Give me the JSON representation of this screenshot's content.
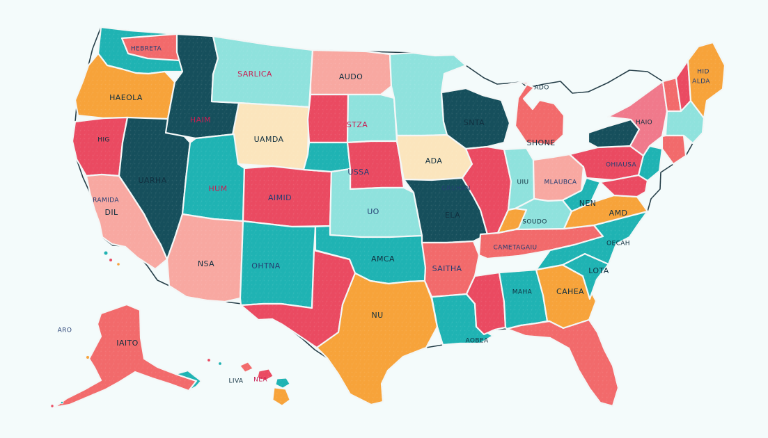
{
  "map": {
    "colors": {
      "background": "#f4fbfb",
      "coral": "#f26a6b",
      "red": "#ea4a61",
      "pink": "#f8a8a1",
      "orange": "#f7a33a",
      "teal": "#1fb3b3",
      "aqua": "#8fe2dd",
      "navy": "#164f5c",
      "cream": "#fbe5bd",
      "rose": "#f0798b"
    },
    "labels": {
      "nebraska_label": "HEBRETA",
      "montana_label": "SARLICA",
      "north_dakota_label": "AUDO",
      "minnesota_label": "SNTA",
      "ontario_label": "",
      "maine_label": "HID\nALDA",
      "oregon_label": "HAEOLA",
      "idaho_label": "HAIM",
      "wyoming_label": "UAMDA",
      "south_dakota_label": "STZA",
      "wisconsin_label": "SNTA",
      "michigan_label": "SHONE",
      "iowa_label": "ADA",
      "new_york_label": "HAIO",
      "california_north_label": "HIG",
      "nevada_label": "UARHA",
      "utah_label": "HUM",
      "colorado_label": "AIMID",
      "kansas_label": "USSA",
      "missouri_label": "ELA",
      "indiana_label": "UIU",
      "ohio_label": "MLAUBCA",
      "pennsylvania_label": "OHIAUSA",
      "california_south_label": "DIL",
      "arizona_label": "NSA",
      "new_mexico_label": "OHTNA",
      "oklahoma_label": "AMCA",
      "arkansas_label": "SAITHA",
      "texas_label": "NU",
      "louisiana_label": "",
      "mississippi_label": "MAHA",
      "alabama_label": "CAHEA",
      "georgia_label": "LOTA",
      "kentucky_label": "SOUDO",
      "tennessee_label": "CAMETAGAIU",
      "virginia_label": "AMD",
      "west_virginia_label": "NEN",
      "north_carolina_label": "OECAH",
      "south_carolina_label": "",
      "florida_label": "",
      "alaska_label": "IAITO",
      "hawaii_label_1": "LIVA",
      "hawaii_label_2": "NEA",
      "tiny_alaska_label": "ARO",
      "tiny_canada_label": "ADO",
      "tiny_texas_label": "AOBEA",
      "illinois_label": "GRUHAN",
      "oklahoma_small_label": "UO",
      "nevada_small_label": "RAMIDA"
    }
  }
}
